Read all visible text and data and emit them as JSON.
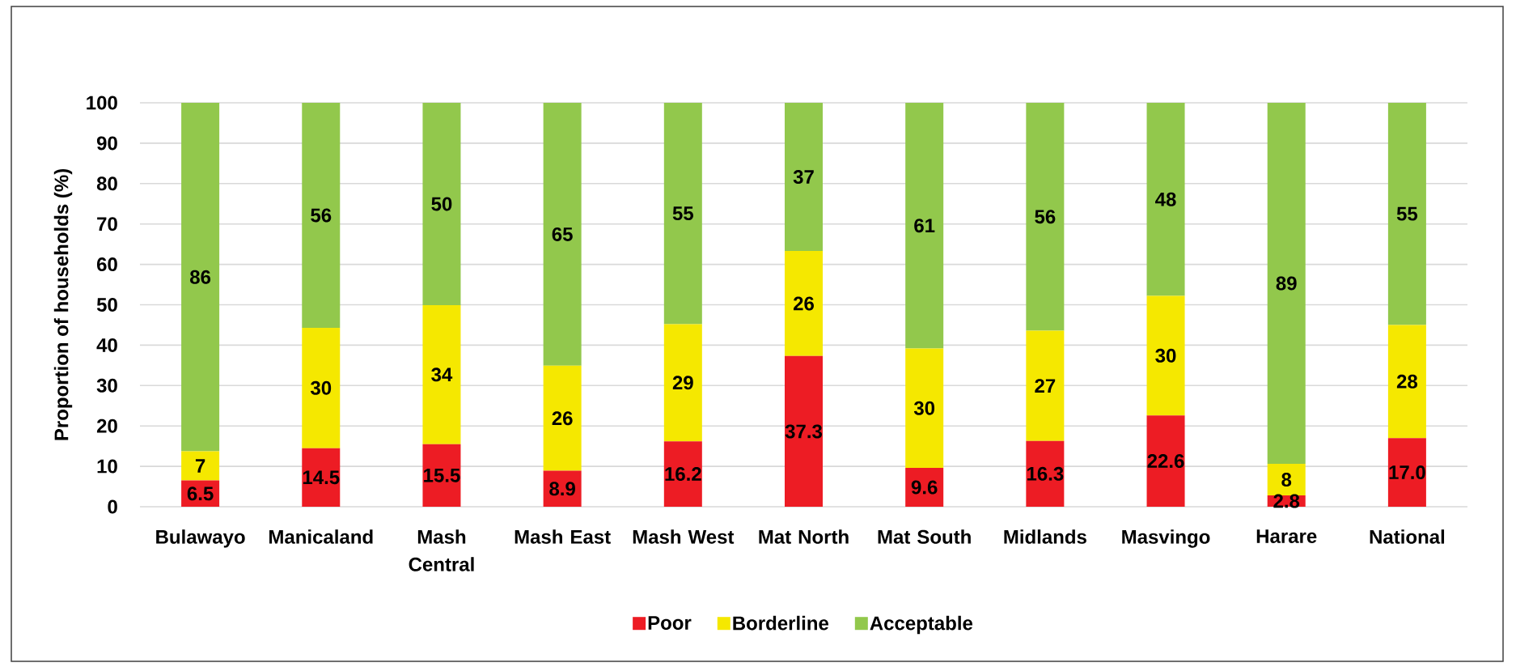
{
  "chart_data": {
    "type": "bar",
    "stacked": true,
    "ylabel": "Proportion of households (%)",
    "categories": [
      "Bulawayo",
      "Manicaland",
      "Mash Central",
      "Mash East",
      "Mash West",
      "Mat North",
      "Mat South",
      "Midlands",
      "Masvingo",
      "Harare",
      "National"
    ],
    "series": [
      {
        "name": "Poor",
        "color": "#ed1c24",
        "values": [
          6.5,
          14.5,
          15.5,
          8.9,
          16.2,
          37.3,
          9.6,
          16.3,
          22.6,
          2.8,
          17.0
        ],
        "value_labels": [
          "6.5",
          "14.5",
          "15.5",
          "8.9",
          "16.2",
          "37.3",
          "9.6",
          "16.3",
          "22.6",
          "2.8",
          "17.0"
        ]
      },
      {
        "name": "Borderline",
        "color": "#f5e800",
        "values": [
          7.2,
          29.8,
          34.4,
          26,
          29,
          26,
          29.6,
          27.3,
          29.6,
          7.8,
          28
        ],
        "value_labels": [
          "7",
          "30",
          "34",
          "26",
          "29",
          "26",
          "30",
          "27",
          "30",
          "8",
          "28"
        ]
      },
      {
        "name": "Acceptable",
        "color": "#92c84c",
        "values": [
          86.3,
          55.7,
          50.1,
          65.1,
          54.8,
          36.7,
          60.8,
          56.4,
          47.8,
          89.4,
          55
        ],
        "value_labels": [
          "86",
          "56",
          "50",
          "65",
          "55",
          "37",
          "61",
          "56",
          "48",
          "89",
          "55"
        ]
      }
    ],
    "ylim": [
      0,
      100
    ],
    "yticks": [
      0,
      10,
      20,
      30,
      40,
      50,
      60,
      70,
      80,
      90,
      100
    ],
    "grid": "y",
    "legend": "bottom"
  }
}
